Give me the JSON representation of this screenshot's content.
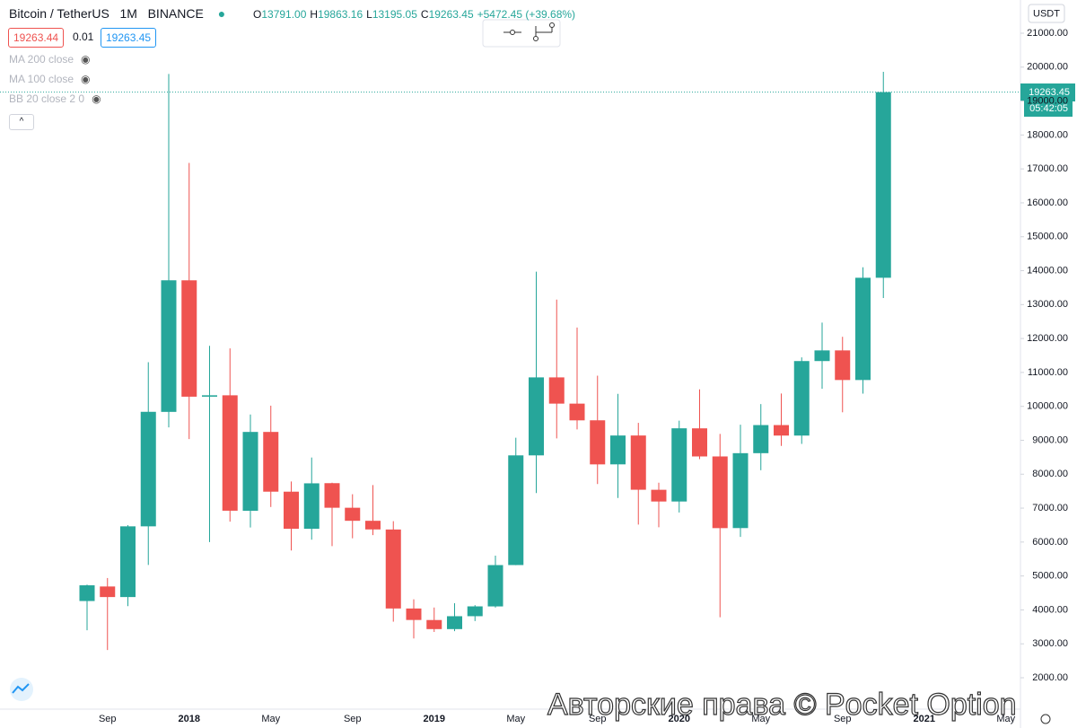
{
  "chart_data": {
    "type": "candlestick",
    "categories": [
      null,
      "Sep",
      null,
      null,
      null,
      "2018",
      null,
      null,
      null,
      "May",
      null,
      null,
      null,
      "Sep",
      null,
      null,
      null,
      "2019",
      null,
      null,
      null,
      "May",
      null,
      null,
      null,
      "Sep",
      null,
      null,
      null,
      "2020",
      null,
      null,
      null,
      "May",
      null,
      null,
      null,
      "Sep",
      null,
      null,
      null,
      "2021",
      null,
      null,
      null,
      "May"
    ],
    "open": [
      4261.48,
      4689.89,
      4378.49,
      6463,
      9837,
      13715.65,
      10285.1,
      10325.64,
      6922,
      9246.01,
      7485.01,
      6391.08,
      7735.67,
      7011.21,
      6626.57,
      6369.52,
      4041.27,
      3701.23,
      3434.1,
      3814.26,
      4102.44,
      5321.94,
      8555,
      10854.1,
      10080.53,
      9588.74,
      8289.97,
      9140.86,
      7540.63,
      7195.24,
      9351.71,
      8523.61,
      6412.14,
      8620,
      9448.27,
      9138.55,
      11335.46,
      11649.51,
      10776.59,
      13791,
      null,
      null,
      null,
      null,
      null,
      null
    ],
    "high": [
      4745.42,
      4939.19,
      6498.01,
      11300,
      19798.68,
      17176.24,
      11786.01,
      11710,
      9759.82,
      10020,
      7786.69,
      8491.77,
      7750,
      7410,
      7680,
      6615.15,
      4312.99,
      4069.8,
      4198,
      4140,
      5600,
      9074.26,
      13970,
      13147.08,
      12325,
      10904,
      10370,
      9513.68,
      7750,
      9578,
      10500,
      9188,
      9460,
      10067,
      10380,
      11444,
      12468,
      12050.85,
      14100,
      19863.16,
      null,
      null,
      null,
      null,
      null,
      null
    ],
    "low": [
      3400,
      2817,
      4110,
      5325,
      9380,
      9035,
      6000.01,
      6600.1,
      6430,
      7032.95,
      5750,
      6070,
      5880,
      6111,
      6205,
      3652.66,
      3156.26,
      3349.92,
      3373.1,
      3670.69,
      4067,
      5316.2,
      7444.58,
      9055,
      9320,
      7710,
      7300,
      6515,
      6435,
      6871.04,
      8445,
      3782.13,
      6150.11,
      8117,
      8833,
      8893.03,
      10518.5,
      9825,
      10374,
      13195.05,
      null,
      null,
      null,
      null,
      null,
      null
    ],
    "close": [
      4724.89,
      4378.51,
      6463,
      9838.96,
      13716.36,
      10285.1,
      10326.5,
      6923.91,
      9246.01,
      7485.01,
      6391.08,
      7730.93,
      7011.21,
      6626.57,
      6371.93,
      4041.32,
      3702.9,
      3434.1,
      3813.69,
      4103.95,
      5320.81,
      8555,
      10854.1,
      10080.53,
      9587.47,
      8289.34,
      9140.85,
      7541.89,
      7195.23,
      9352.89,
      8523.61,
      6410.44,
      8620,
      9448.27,
      9138.55,
      11335.46,
      11649.51,
      10776.59,
      13791,
      19263.45,
      null,
      null,
      null,
      null,
      null,
      null
    ],
    "up_color": "#26a69a",
    "down_color": "#ef5350",
    "ylim": [
      1074,
      21979
    ],
    "yticks": [
      {
        "value": 2000,
        "label": "2000.00"
      },
      {
        "value": 3000,
        "label": "3000.00"
      },
      {
        "value": 4000,
        "label": "4000.00"
      },
      {
        "value": 5000,
        "label": "5000.00"
      },
      {
        "value": 6000,
        "label": "6000.00"
      },
      {
        "value": 7000,
        "label": "7000.00"
      },
      {
        "value": 8000,
        "label": "8000.00"
      },
      {
        "value": 9000,
        "label": "9000.00"
      },
      {
        "value": 10000,
        "label": "10000.00"
      },
      {
        "value": 11000,
        "label": "11000.00"
      },
      {
        "value": 12000,
        "label": "12000.00"
      },
      {
        "value": 13000,
        "label": "13000.00"
      },
      {
        "value": 14000,
        "label": "14000.00"
      },
      {
        "value": 15000,
        "label": "15000.00"
      },
      {
        "value": 16000,
        "label": "16000.00"
      },
      {
        "value": 17000,
        "label": "17000.00"
      },
      {
        "value": 18000,
        "label": "18000.00"
      },
      {
        "value": 19000,
        "label": "19000.00"
      },
      {
        "value": 20000,
        "label": "20000.00"
      },
      {
        "value": 21000,
        "label": "21000.00"
      }
    ],
    "grid": false
  },
  "ui": {
    "symbol": "Bitcoin / TetherUS",
    "interval": "1M",
    "exchange": "BINANCE",
    "ohlc": [
      {
        "key": "O",
        "value": "13791.00"
      },
      {
        "key": "H",
        "value": "19863.16"
      },
      {
        "key": "L",
        "value": "13195.05"
      },
      {
        "key": "C",
        "value": "19263.45"
      }
    ],
    "change": "+5472.45 (+39.68%)",
    "sell": "19263.44",
    "spread": "0.01",
    "buy": "19263.45",
    "indicators": [
      "MA 200 close",
      "MA 100 close",
      "BB 20 close 2 0"
    ],
    "currency": "USDT",
    "last_price": "19263.45",
    "countdown": "05:42:05",
    "watermark": "Авторские права © Pocket Option"
  }
}
